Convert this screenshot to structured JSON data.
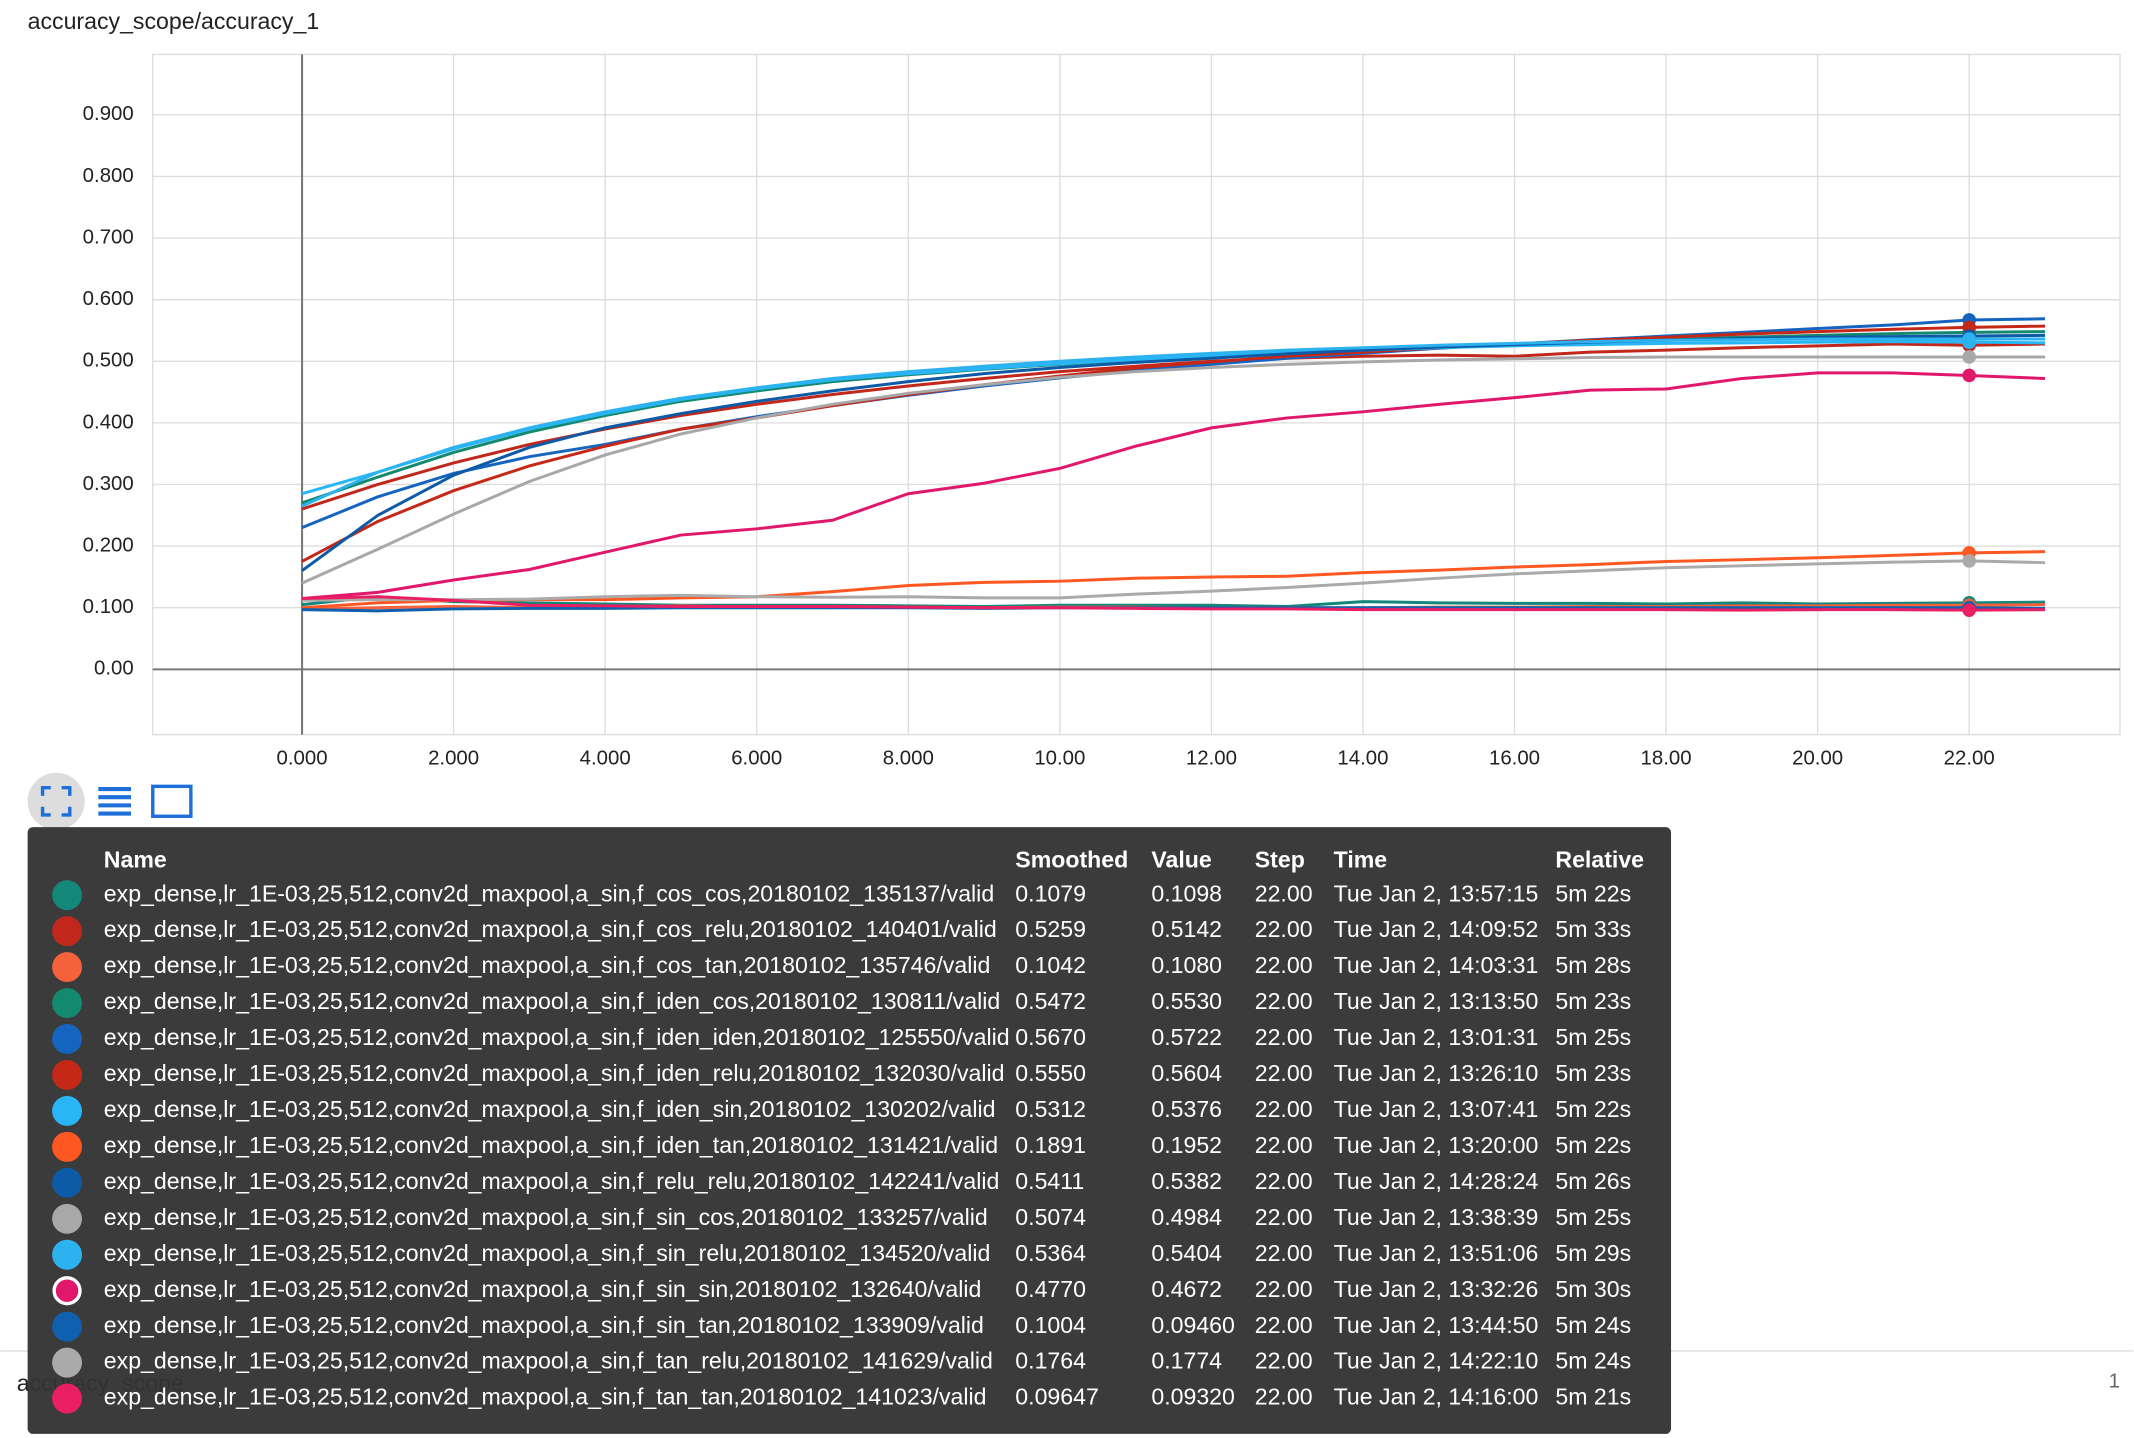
{
  "chart_data": {
    "type": "line",
    "title": "accuracy_scope/accuracy_1",
    "x": [
      0,
      1,
      2,
      3,
      4,
      5,
      6,
      7,
      8,
      9,
      10,
      11,
      12,
      13,
      14,
      15,
      16,
      17,
      18,
      19,
      20,
      21,
      22,
      23
    ],
    "xlim": [
      -1.97,
      23.99
    ],
    "ylim": [
      -0.106,
      0.998
    ],
    "xticks": [
      {
        "value": 0,
        "label": "0.000"
      },
      {
        "value": 2,
        "label": "2.000"
      },
      {
        "value": 4,
        "label": "4.000"
      },
      {
        "value": 6,
        "label": "6.000"
      },
      {
        "value": 8,
        "label": "8.000"
      },
      {
        "value": 10,
        "label": "10.00"
      },
      {
        "value": 12,
        "label": "12.00"
      },
      {
        "value": 14,
        "label": "14.00"
      },
      {
        "value": 16,
        "label": "16.00"
      },
      {
        "value": 18,
        "label": "18.00"
      },
      {
        "value": 20,
        "label": "20.00"
      },
      {
        "value": 22,
        "label": "22.00"
      }
    ],
    "yticks": [
      {
        "value": 0,
        "label": "0.00"
      },
      {
        "value": 0.1,
        "label": "0.100"
      },
      {
        "value": 0.2,
        "label": "0.200"
      },
      {
        "value": 0.3,
        "label": "0.300"
      },
      {
        "value": 0.4,
        "label": "0.400"
      },
      {
        "value": 0.5,
        "label": "0.500"
      },
      {
        "value": 0.6,
        "label": "0.600"
      },
      {
        "value": 0.7,
        "label": "0.700"
      },
      {
        "value": 0.8,
        "label": "0.800"
      },
      {
        "value": 0.9,
        "label": "0.900"
      }
    ],
    "grid": true,
    "series": [
      {
        "name": "exp_dense,lr_1E-03,25,512,conv2d_maxpool,a_sin,f_cos_cos,20180102_135137/valid",
        "color": "#12877a",
        "values": [
          0.105,
          0.118,
          0.11,
          0.108,
          0.106,
          0.104,
          0.104,
          0.104,
          0.103,
          0.102,
          0.104,
          0.104,
          0.104,
          0.102,
          0.11,
          0.108,
          0.107,
          0.107,
          0.106,
          0.108,
          0.106,
          0.107,
          0.108,
          0.109
        ]
      },
      {
        "name": "exp_dense,lr_1E-03,25,512,conv2d_maxpool,a_sin,f_cos_relu,20180102_140401/valid",
        "color": "#c1281b",
        "values": [
          0.26,
          0.3,
          0.335,
          0.365,
          0.39,
          0.412,
          0.43,
          0.446,
          0.46,
          0.472,
          0.483,
          0.492,
          0.5,
          0.505,
          0.508,
          0.51,
          0.508,
          0.515,
          0.518,
          0.522,
          0.525,
          0.528,
          0.526,
          0.528
        ]
      },
      {
        "name": "exp_dense,lr_1E-03,25,512,conv2d_maxpool,a_sin,f_cos_tan,20180102_135746/valid",
        "color": "#f4613a",
        "values": [
          0.098,
          0.1,
          0.102,
          0.1,
          0.101,
          0.103,
          0.101,
          0.102,
          0.101,
          0.1,
          0.101,
          0.101,
          0.1,
          0.1,
          0.1,
          0.101,
          0.101,
          0.102,
          0.102,
          0.103,
          0.103,
          0.104,
          0.104,
          0.105
        ]
      },
      {
        "name": "exp_dense,lr_1E-03,25,512,conv2d_maxpool,a_sin,f_iden_cos,20180102_130811/valid",
        "color": "#138a6f",
        "values": [
          0.27,
          0.312,
          0.352,
          0.385,
          0.412,
          0.435,
          0.452,
          0.467,
          0.478,
          0.487,
          0.495,
          0.502,
          0.508,
          0.514,
          0.519,
          0.524,
          0.528,
          0.532,
          0.536,
          0.539,
          0.542,
          0.545,
          0.547,
          0.548
        ]
      },
      {
        "name": "exp_dense,lr_1E-03,25,512,conv2d_maxpool,a_sin,f_iden_iden,20180102_125550/valid",
        "color": "#1565c0",
        "values": [
          0.23,
          0.28,
          0.318,
          0.345,
          0.365,
          0.39,
          0.41,
          0.428,
          0.445,
          0.46,
          0.473,
          0.485,
          0.495,
          0.505,
          0.513,
          0.521,
          0.528,
          0.535,
          0.541,
          0.547,
          0.553,
          0.559,
          0.567,
          0.569
        ]
      },
      {
        "name": "exp_dense,lr_1E-03,25,512,conv2d_maxpool,a_sin,f_iden_relu,20180102_132030/valid",
        "color": "#c62818",
        "values": [
          0.175,
          0.24,
          0.29,
          0.33,
          0.362,
          0.39,
          0.408,
          0.428,
          0.446,
          0.462,
          0.476,
          0.489,
          0.499,
          0.508,
          0.515,
          0.522,
          0.528,
          0.534,
          0.539,
          0.544,
          0.548,
          0.552,
          0.555,
          0.557
        ]
      },
      {
        "name": "exp_dense,lr_1E-03,25,512,conv2d_maxpool,a_sin,f_iden_sin,20180102_130202/valid",
        "color": "#29b6f6",
        "values": [
          0.285,
          0.32,
          0.358,
          0.39,
          0.415,
          0.438,
          0.455,
          0.47,
          0.48,
          0.488,
          0.496,
          0.503,
          0.509,
          0.514,
          0.518,
          0.522,
          0.525,
          0.527,
          0.529,
          0.53,
          0.531,
          0.532,
          0.531,
          0.53
        ]
      },
      {
        "name": "exp_dense,lr_1E-03,25,512,conv2d_maxpool,a_sin,f_iden_tan,20180102_131421/valid",
        "color": "#ff5722",
        "values": [
          0.1,
          0.108,
          0.112,
          0.113,
          0.113,
          0.116,
          0.118,
          0.126,
          0.136,
          0.141,
          0.143,
          0.148,
          0.15,
          0.151,
          0.157,
          0.161,
          0.166,
          0.17,
          0.175,
          0.178,
          0.181,
          0.185,
          0.189,
          0.191
        ]
      },
      {
        "name": "exp_dense,lr_1E-03,25,512,conv2d_maxpool,a_sin,f_relu_relu,20180102_142241/valid",
        "color": "#0d5aa7",
        "values": [
          0.16,
          0.25,
          0.315,
          0.36,
          0.392,
          0.415,
          0.435,
          0.452,
          0.467,
          0.48,
          0.49,
          0.498,
          0.505,
          0.512,
          0.518,
          0.523,
          0.527,
          0.531,
          0.534,
          0.537,
          0.539,
          0.54,
          0.541,
          0.542
        ]
      },
      {
        "name": "exp_dense,lr_1E-03,25,512,conv2d_maxpool,a_sin,f_sin_cos,20180102_133257/valid",
        "color": "#a8a8a8",
        "values": [
          0.14,
          0.195,
          0.252,
          0.305,
          0.348,
          0.382,
          0.408,
          0.43,
          0.448,
          0.462,
          0.474,
          0.483,
          0.49,
          0.495,
          0.499,
          0.502,
          0.504,
          0.506,
          0.507,
          0.507,
          0.507,
          0.507,
          0.507,
          0.507
        ]
      },
      {
        "name": "exp_dense,lr_1E-03,25,512,conv2d_maxpool,a_sin,f_sin_relu,20180102_134520/valid",
        "color": "#2cb2ef",
        "values": [
          0.265,
          0.32,
          0.36,
          0.392,
          0.418,
          0.44,
          0.457,
          0.472,
          0.483,
          0.492,
          0.5,
          0.507,
          0.513,
          0.518,
          0.522,
          0.526,
          0.529,
          0.532,
          0.534,
          0.535,
          0.536,
          0.536,
          0.536,
          0.536
        ]
      },
      {
        "name": "exp_dense,lr_1E-03,25,512,conv2d_maxpool,a_sin,f_sin_sin,20180102_132640/valid",
        "color": "#e0176b",
        "values": [
          0.115,
          0.125,
          0.145,
          0.162,
          0.19,
          0.218,
          0.228,
          0.242,
          0.285,
          0.302,
          0.326,
          0.362,
          0.392,
          0.408,
          0.418,
          0.43,
          0.441,
          0.453,
          0.455,
          0.472,
          0.481,
          0.481,
          0.477,
          0.472
        ]
      },
      {
        "name": "exp_dense,lr_1E-03,25,512,conv2d_maxpool,a_sin,f_sin_tan,20180102_133909/valid",
        "color": "#1060b0",
        "values": [
          0.097,
          0.095,
          0.098,
          0.099,
          0.099,
          0.1,
          0.1,
          0.1,
          0.1,
          0.099,
          0.1,
          0.1,
          0.1,
          0.1,
          0.1,
          0.1,
          0.1,
          0.1,
          0.1,
          0.1,
          0.1,
          0.1,
          0.1,
          0.099
        ]
      },
      {
        "name": "exp_dense,lr_1E-03,25,512,conv2d_maxpool,a_sin,f_tan_relu,20180102_141629/valid",
        "color": "#aaaaaa",
        "values": [
          0.112,
          0.113,
          0.113,
          0.114,
          0.118,
          0.12,
          0.118,
          0.117,
          0.118,
          0.116,
          0.116,
          0.122,
          0.127,
          0.133,
          0.14,
          0.148,
          0.155,
          0.16,
          0.165,
          0.168,
          0.171,
          0.174,
          0.176,
          0.173
        ]
      },
      {
        "name": "exp_dense,lr_1E-03,25,512,conv2d_maxpool,a_sin,f_tan_tan,20180102_141023/valid",
        "color": "#e91e63",
        "values": [
          0.115,
          0.118,
          0.112,
          0.104,
          0.103,
          0.102,
          0.102,
          0.102,
          0.101,
          0.1,
          0.1,
          0.099,
          0.098,
          0.098,
          0.097,
          0.097,
          0.097,
          0.097,
          0.097,
          0.096,
          0.097,
          0.097,
          0.096,
          0.097
        ]
      }
    ]
  },
  "tooltip": {
    "highlight_step_index": 22,
    "header": [
      "Name",
      "Smoothed",
      "Value",
      "Step",
      "Time",
      "Relative"
    ],
    "rows": [
      [
        "0.1079",
        "0.1098",
        "22.00",
        "Tue Jan 2, 13:57:15",
        "5m 22s"
      ],
      [
        "0.5259",
        "0.5142",
        "22.00",
        "Tue Jan 2, 14:09:52",
        "5m 33s"
      ],
      [
        "0.1042",
        "0.1080",
        "22.00",
        "Tue Jan 2, 14:03:31",
        "5m 28s"
      ],
      [
        "0.5472",
        "0.5530",
        "22.00",
        "Tue Jan 2, 13:13:50",
        "5m 23s"
      ],
      [
        "0.5670",
        "0.5722",
        "22.00",
        "Tue Jan 2, 13:01:31",
        "5m 25s"
      ],
      [
        "0.5550",
        "0.5604",
        "22.00",
        "Tue Jan 2, 13:26:10",
        "5m 23s"
      ],
      [
        "0.5312",
        "0.5376",
        "22.00",
        "Tue Jan 2, 13:07:41",
        "5m 22s"
      ],
      [
        "0.1891",
        "0.1952",
        "22.00",
        "Tue Jan 2, 13:20:00",
        "5m 22s"
      ],
      [
        "0.5411",
        "0.5382",
        "22.00",
        "Tue Jan 2, 14:28:24",
        "5m 26s"
      ],
      [
        "0.5074",
        "0.4984",
        "22.00",
        "Tue Jan 2, 13:38:39",
        "5m 25s"
      ],
      [
        "0.5364",
        "0.5404",
        "22.00",
        "Tue Jan 2, 13:51:06",
        "5m 29s"
      ],
      [
        "0.4770",
        "0.4672",
        "22.00",
        "Tue Jan 2, 13:32:26",
        "5m 30s"
      ],
      [
        "0.1004",
        "0.09460",
        "22.00",
        "Tue Jan 2, 13:44:50",
        "5m 24s"
      ],
      [
        "0.1764",
        "0.1774",
        "22.00",
        "Tue Jan 2, 14:22:10",
        "5m 24s"
      ],
      [
        "0.09647",
        "0.09320",
        "22.00",
        "Tue Jan 2, 14:16:00",
        "5m 21s"
      ]
    ]
  },
  "next_card": {
    "title": "accuracy_scope",
    "page": "1"
  }
}
